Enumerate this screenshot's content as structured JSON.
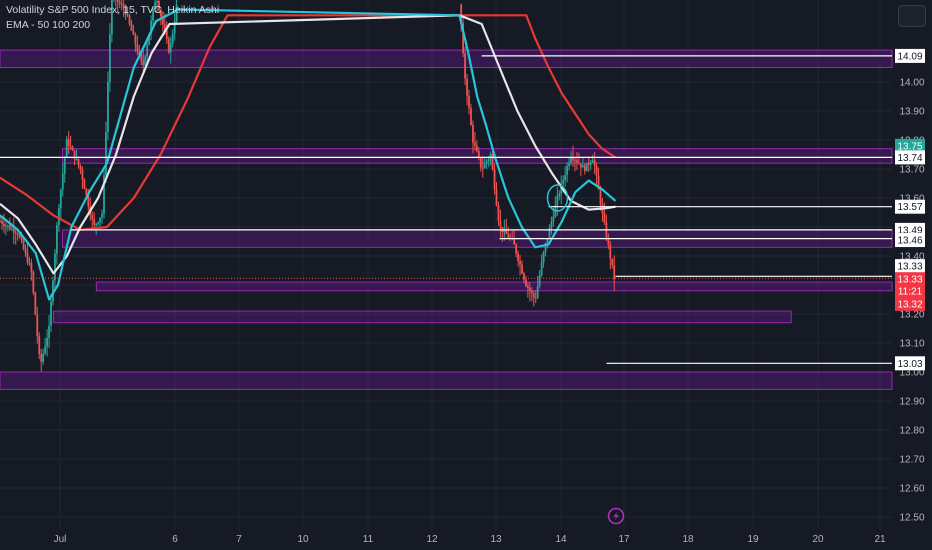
{
  "header": {
    "title": "Volatility S&P 500 Index, 15, TVC, Heikin Ashi",
    "indicator": "EMA - 50 100 200"
  },
  "colors": {
    "bg": "#161a25",
    "bull": "#26a69a",
    "bear": "#ef5350",
    "ema50": "#26c6da",
    "ema100": "#e6e6ea",
    "ema200": "#e53935",
    "zone_fill": "#6a1b9a",
    "zone_border": "#9c27b0",
    "level": "#ffffff",
    "tag_green": "#26a69a",
    "tag_red": "#f23645"
  },
  "chart_data": {
    "type": "candlestick",
    "ylim": [
      12.5,
      14.23
    ],
    "y_ticks": [
      "12.50",
      "12.60",
      "12.70",
      "12.80",
      "12.90",
      "13.00",
      "13.10",
      "13.20",
      "13.30",
      "13.40",
      "13.50",
      "13.60",
      "13.70",
      "13.80",
      "13.90",
      "14.00"
    ],
    "x_ticks": [
      "Jul",
      "6",
      "7",
      "10",
      "11",
      "12",
      "13",
      "14",
      "17",
      "18",
      "19",
      "20",
      "21"
    ],
    "price_tags": [
      {
        "value": "14.09",
        "y": 14.09,
        "style": "white"
      },
      {
        "value": "13.75",
        "y": 13.78,
        "style": "green"
      },
      {
        "value": "13.74",
        "y": 13.74,
        "style": "white"
      },
      {
        "value": "13.57",
        "y": 13.57,
        "style": "white"
      },
      {
        "value": "13.49",
        "y": 13.49,
        "style": "white"
      },
      {
        "value": "13.46",
        "y": 13.455,
        "style": "white"
      },
      {
        "value": "13.33",
        "y": 13.365,
        "style": "white"
      },
      {
        "value": "13.33",
        "y": 13.32,
        "style": "red"
      },
      {
        "value": "11:21",
        "y": 13.28,
        "style": "red"
      },
      {
        "value": "13.32",
        "y": 13.235,
        "style": "red"
      },
      {
        "value": "13.03",
        "y": 13.03,
        "style": "white"
      }
    ],
    "levels": [
      {
        "y": 14.09,
        "x0": 0.54,
        "x1": 1.0
      },
      {
        "y": 13.74,
        "x0": 0.0,
        "x1": 1.0
      },
      {
        "y": 13.57,
        "x0": 0.615,
        "x1": 1.0
      },
      {
        "y": 13.49,
        "x0": 0.08,
        "x1": 1.0
      },
      {
        "y": 13.46,
        "x0": 0.56,
        "x1": 1.0
      },
      {
        "y": 13.33,
        "x0": 0.69,
        "x1": 1.0
      },
      {
        "y": 13.03,
        "x0": 0.68,
        "x1": 1.0
      }
    ],
    "zones": [
      {
        "y0": 14.05,
        "y1": 14.11,
        "x0": 0.0,
        "x1": 1.0
      },
      {
        "y0": 13.72,
        "y1": 13.77,
        "x0": 0.07,
        "x1": 1.0
      },
      {
        "y0": 13.43,
        "y1": 13.49,
        "x0": 0.07,
        "x1": 1.0
      },
      {
        "y0": 13.28,
        "y1": 13.31,
        "x0": 0.108,
        "x1": 1.0
      },
      {
        "y0": 13.17,
        "y1": 13.21,
        "x0": 0.06,
        "x1": 0.887
      },
      {
        "y0": 12.94,
        "y1": 13.0,
        "x0": 0.0,
        "x1": 1.0
      }
    ],
    "ema50": [
      [
        0,
        13.54
      ],
      [
        0.02,
        13.49
      ],
      [
        0.04,
        13.41
      ],
      [
        0.055,
        13.25
      ],
      [
        0.065,
        13.3
      ],
      [
        0.08,
        13.5
      ],
      [
        0.1,
        13.62
      ],
      [
        0.12,
        13.72
      ],
      [
        0.15,
        14.05
      ],
      [
        0.175,
        14.21
      ],
      [
        0.2,
        14.25
      ],
      [
        0.515,
        14.23
      ],
      [
        0.525,
        14.1
      ],
      [
        0.535,
        13.95
      ],
      [
        0.545,
        13.85
      ],
      [
        0.555,
        13.74
      ],
      [
        0.57,
        13.6
      ],
      [
        0.585,
        13.5
      ],
      [
        0.6,
        13.43
      ],
      [
        0.615,
        13.44
      ],
      [
        0.63,
        13.52
      ],
      [
        0.645,
        13.62
      ],
      [
        0.66,
        13.66
      ],
      [
        0.675,
        13.63
      ],
      [
        0.69,
        13.59
      ]
    ],
    "ema100": [
      [
        0,
        13.58
      ],
      [
        0.02,
        13.53
      ],
      [
        0.04,
        13.44
      ],
      [
        0.06,
        13.34
      ],
      [
        0.075,
        13.4
      ],
      [
        0.09,
        13.5
      ],
      [
        0.11,
        13.6
      ],
      [
        0.13,
        13.75
      ],
      [
        0.15,
        13.95
      ],
      [
        0.17,
        14.1
      ],
      [
        0.19,
        14.2
      ],
      [
        0.515,
        14.23
      ],
      [
        0.54,
        14.2
      ],
      [
        0.56,
        14.05
      ],
      [
        0.58,
        13.9
      ],
      [
        0.6,
        13.78
      ],
      [
        0.62,
        13.68
      ],
      [
        0.64,
        13.59
      ],
      [
        0.66,
        13.56
      ],
      [
        0.68,
        13.565
      ],
      [
        0.69,
        13.57
      ]
    ],
    "ema200": [
      [
        0,
        13.67
      ],
      [
        0.03,
        13.61
      ],
      [
        0.06,
        13.54
      ],
      [
        0.09,
        13.49
      ],
      [
        0.12,
        13.5
      ],
      [
        0.15,
        13.6
      ],
      [
        0.18,
        13.75
      ],
      [
        0.21,
        13.94
      ],
      [
        0.235,
        14.12
      ],
      [
        0.255,
        14.23
      ],
      [
        0.59,
        14.23
      ],
      [
        0.6,
        14.15
      ],
      [
        0.615,
        14.05
      ],
      [
        0.63,
        13.96
      ],
      [
        0.645,
        13.89
      ],
      [
        0.66,
        13.82
      ],
      [
        0.675,
        13.77
      ],
      [
        0.69,
        13.74
      ]
    ],
    "last_price": 13.33
  }
}
